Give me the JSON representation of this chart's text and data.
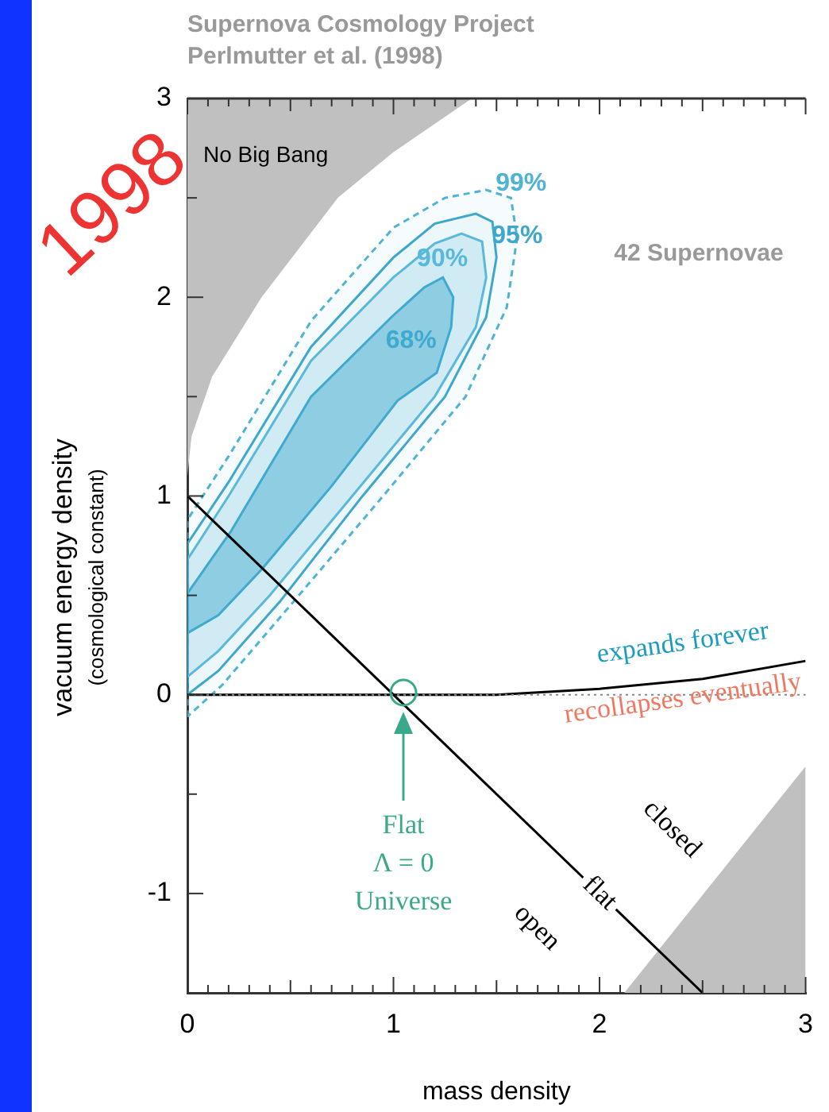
{
  "chart_data": {
    "type": "line",
    "title": "Supernova Cosmology Project",
    "subtitle": "Perlmutter et al. (1998)",
    "xlabel": "mass density",
    "ylabel": "vacuum energy density\n(cosmological constant)",
    "xlim": [
      0,
      3
    ],
    "ylim": [
      -1.5,
      3
    ],
    "xticks": [
      0,
      {
        "value": 0.1,
        "label": null
      },
      {
        "value": 0.2,
        "label": null
      },
      {
        "value": 0.3,
        "label": null
      },
      {
        "value": 0.4,
        "label": null
      },
      {
        "value": 0.5,
        "label": null
      },
      {
        "value": 0.6,
        "label": null
      },
      {
        "value": 0.7,
        "label": null
      },
      {
        "value": 0.8,
        "label": null
      },
      {
        "value": 0.9,
        "label": null
      },
      1,
      {
        "value": 1.1,
        "label": null
      },
      {
        "value": 1.2,
        "label": null
      },
      {
        "value": 1.3,
        "label": null
      },
      {
        "value": 1.4,
        "label": null
      },
      {
        "value": 1.5,
        "label": null
      },
      {
        "value": 1.6,
        "label": null
      },
      {
        "value": 1.7,
        "label": null
      },
      {
        "value": 1.8,
        "label": null
      },
      {
        "value": 1.9,
        "label": null
      },
      2,
      {
        "value": 2.1,
        "label": null
      },
      {
        "value": 2.2,
        "label": null
      },
      {
        "value": 2.3,
        "label": null
      },
      {
        "value": 2.4,
        "label": null
      },
      {
        "value": 2.5,
        "label": null
      },
      {
        "value": 2.6,
        "label": null
      },
      {
        "value": 2.7,
        "label": null
      },
      {
        "value": 2.8,
        "label": null
      },
      {
        "value": 2.9,
        "label": null
      },
      3
    ],
    "yticks": [
      {
        "value": -1.5,
        "label": null
      },
      -1,
      {
        "value": -0.5,
        "label": null
      },
      0,
      {
        "value": 0.5,
        "label": null
      },
      1,
      {
        "value": 1.5,
        "label": null
      },
      2,
      {
        "value": 2.5,
        "label": null
      },
      3
    ],
    "grid": false,
    "legend": false,
    "marker": "none",
    "series": [
      {
        "name": "No Big Bang",
        "type": "area",
        "color": "#c0c0c0",
        "x": [
          0,
          1.38,
          1.0,
          0.73,
          0.36,
          0.12,
          0.02,
          0,
          0
        ],
        "values": [
          3,
          3,
          2.73,
          2.5,
          2.0,
          1.6,
          1.3,
          1.1,
          3
        ]
      },
      {
        "type": "area",
        "color": "#c0c0c0",
        "x": [
          2.12,
          3,
          3,
          2.12
        ],
        "values": [
          -1.5,
          -0.36,
          -1.5,
          -1.5
        ]
      },
      {
        "name": "99%",
        "type": "area",
        "line_style": "dashed",
        "color": "#4fb3d3",
        "x": [
          0,
          0,
          0.2,
          0.6,
          1.0,
          1.25,
          1.45,
          1.57,
          1.6,
          1.55,
          1.35,
          0.95,
          0.5,
          0.17,
          0
        ],
        "values": [
          -0.11,
          0.88,
          1.2,
          1.88,
          2.35,
          2.5,
          2.54,
          2.5,
          2.3,
          1.95,
          1.5,
          1.0,
          0.45,
          0.05,
          -0.11
        ]
      },
      {
        "name": "95%",
        "type": "area",
        "color": "#3fa7cc",
        "x": [
          0,
          0,
          0.2,
          0.6,
          1.0,
          1.2,
          1.4,
          1.48,
          1.5,
          1.45,
          1.25,
          0.85,
          0.45,
          0.15,
          0
        ],
        "values": [
          0.0,
          0.76,
          1.07,
          1.75,
          2.2,
          2.37,
          2.42,
          2.38,
          2.2,
          1.9,
          1.5,
          1.0,
          0.47,
          0.12,
          0.0
        ]
      },
      {
        "name": "90%",
        "type": "area",
        "color": "#5ab8da",
        "x": [
          0,
          0,
          0.2,
          0.6,
          1.0,
          1.2,
          1.33,
          1.43,
          1.45,
          1.4,
          1.2,
          0.8,
          0.4,
          0.15,
          0
        ],
        "values": [
          0.09,
          0.68,
          1.0,
          1.68,
          2.1,
          2.27,
          2.32,
          2.28,
          2.1,
          1.85,
          1.5,
          1.0,
          0.5,
          0.22,
          0.09
        ]
      },
      {
        "name": "68%",
        "type": "area",
        "color": "#3fa9cf",
        "x": [
          0,
          0,
          0.21,
          0.6,
          0.99,
          1.15,
          1.24,
          1.29,
          1.28,
          1.21,
          1.02,
          0.7,
          0.36,
          0.15,
          0
        ],
        "values": [
          0.31,
          0.51,
          0.82,
          1.5,
          1.9,
          2.05,
          2.1,
          2.0,
          1.85,
          1.62,
          1.48,
          1.05,
          0.63,
          0.4,
          0.31
        ]
      },
      {
        "name": "flat",
        "color": "#000000",
        "x": [
          0,
          2.5
        ],
        "values": [
          1,
          -1.5
        ]
      },
      {
        "color": "#000000",
        "x": [
          0,
          1,
          1.5,
          2,
          2.5,
          3
        ],
        "values": [
          0,
          0,
          0,
          0.03,
          0.08,
          0.17
        ]
      }
    ],
    "ref_lines": [
      {
        "axis": "y",
        "value": 0,
        "color": "#888888",
        "line_style": "dotted"
      }
    ],
    "annotations": [
      "42 Supernovae",
      "expands forever",
      "recollapses eventually",
      "closed",
      "open",
      "Flat\nΛ = 0\nUniverse",
      "1998"
    ]
  }
}
